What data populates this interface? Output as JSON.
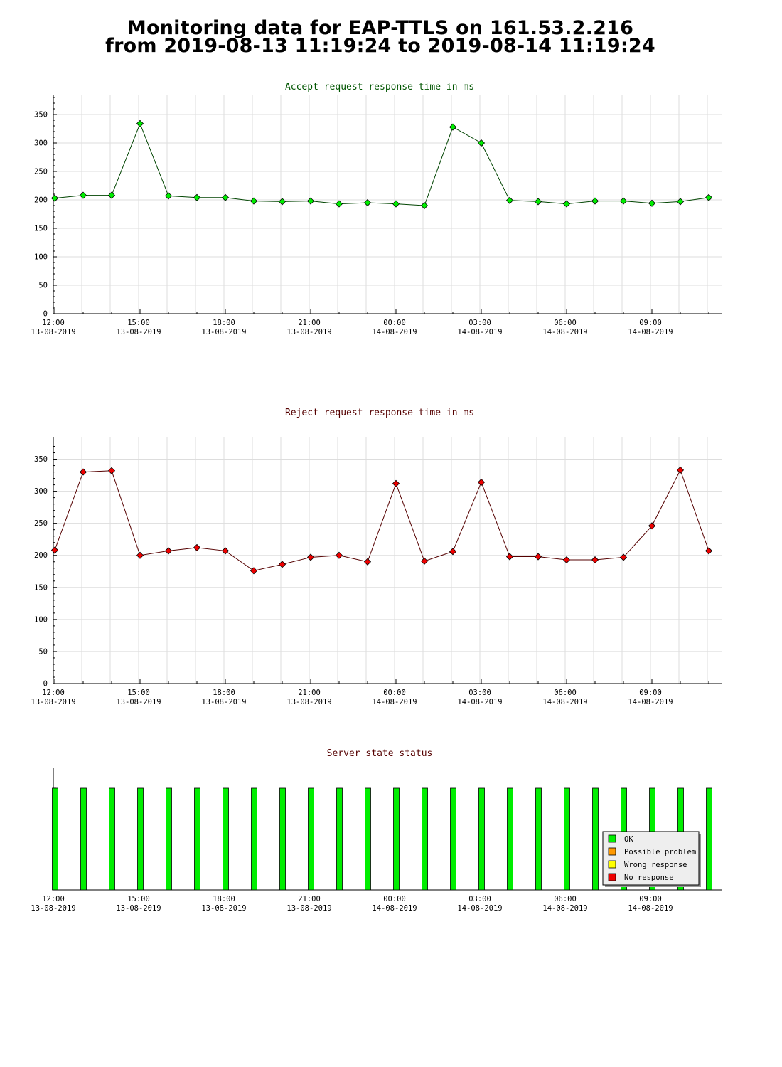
{
  "header": {
    "line1": "Monitoring data for EAP-TTLS on 161.53.2.216",
    "line2": "from 2019-08-13 11:19:24 to 2019-08-14 11:19:24"
  },
  "colors": {
    "accept_line": "#004400",
    "accept_marker": "#00ee00",
    "accept_title": "#005500",
    "reject_line": "#550000",
    "reject_marker": "#ee0000",
    "reject_title": "#550000",
    "status_bar": "#00ee00",
    "grid": "#dddddd"
  },
  "x_ticks": [
    {
      "time": "12:00",
      "date": "13-08-2019"
    },
    {
      "time": "15:00",
      "date": "13-08-2019"
    },
    {
      "time": "18:00",
      "date": "13-08-2019"
    },
    {
      "time": "21:00",
      "date": "13-08-2019"
    },
    {
      "time": "00:00",
      "date": "14-08-2019"
    },
    {
      "time": "03:00",
      "date": "14-08-2019"
    },
    {
      "time": "06:00",
      "date": "14-08-2019"
    },
    {
      "time": "09:00",
      "date": "14-08-2019"
    }
  ],
  "chart_data": [
    {
      "type": "line",
      "title": "Accept request response time in ms",
      "xlabel": "",
      "ylabel": "",
      "ylim": [
        0,
        385
      ],
      "yticks": [
        0,
        50,
        100,
        150,
        200,
        250,
        300,
        350
      ],
      "grid": true,
      "x": [
        "2019-08-13 12:00",
        "2019-08-13 13:00",
        "2019-08-13 14:00",
        "2019-08-13 15:00",
        "2019-08-13 16:00",
        "2019-08-13 17:00",
        "2019-08-13 18:00",
        "2019-08-13 19:00",
        "2019-08-13 20:00",
        "2019-08-13 21:00",
        "2019-08-13 22:00",
        "2019-08-13 23:00",
        "2019-08-14 00:00",
        "2019-08-14 01:00",
        "2019-08-14 02:00",
        "2019-08-14 03:00",
        "2019-08-14 04:00",
        "2019-08-14 05:00",
        "2019-08-14 06:00",
        "2019-08-14 07:00",
        "2019-08-14 08:00",
        "2019-08-14 09:00",
        "2019-08-14 10:00",
        "2019-08-14 11:00"
      ],
      "values": [
        203,
        208,
        208,
        334,
        207,
        204,
        204,
        198,
        197,
        198,
        193,
        195,
        193,
        190,
        328,
        300,
        199,
        197,
        193,
        198,
        198,
        194,
        197,
        204
      ]
    },
    {
      "type": "line",
      "title": "Reject request response time in ms",
      "xlabel": "",
      "ylabel": "",
      "ylim": [
        0,
        385
      ],
      "yticks": [
        0,
        50,
        100,
        150,
        200,
        250,
        300,
        350
      ],
      "grid": true,
      "x": [
        "2019-08-13 12:00",
        "2019-08-13 13:00",
        "2019-08-13 14:00",
        "2019-08-13 15:00",
        "2019-08-13 16:00",
        "2019-08-13 17:00",
        "2019-08-13 18:00",
        "2019-08-13 19:00",
        "2019-08-13 20:00",
        "2019-08-13 21:00",
        "2019-08-13 22:00",
        "2019-08-13 23:00",
        "2019-08-14 00:00",
        "2019-08-14 01:00",
        "2019-08-14 02:00",
        "2019-08-14 03:00",
        "2019-08-14 04:00",
        "2019-08-14 05:00",
        "2019-08-14 06:00",
        "2019-08-14 07:00",
        "2019-08-14 08:00",
        "2019-08-14 09:00",
        "2019-08-14 10:00",
        "2019-08-14 11:00"
      ],
      "values": [
        208,
        330,
        332,
        200,
        207,
        212,
        207,
        176,
        186,
        197,
        200,
        190,
        312,
        191,
        206,
        314,
        198,
        198,
        193,
        193,
        197,
        246,
        333,
        207
      ]
    },
    {
      "type": "bar",
      "title": "Server state status",
      "grid": false,
      "legend_position": "bottom-right",
      "legend": [
        {
          "label": "OK",
          "color": "#00ee00"
        },
        {
          "label": "Possible problem",
          "color": "#ff9900"
        },
        {
          "label": "Wrong response",
          "color": "#ffff00"
        },
        {
          "label": "No response",
          "color": "#ee0000"
        }
      ],
      "x": [
        "2019-08-13 12:00",
        "2019-08-13 13:00",
        "2019-08-13 14:00",
        "2019-08-13 15:00",
        "2019-08-13 16:00",
        "2019-08-13 17:00",
        "2019-08-13 18:00",
        "2019-08-13 19:00",
        "2019-08-13 20:00",
        "2019-08-13 21:00",
        "2019-08-13 22:00",
        "2019-08-13 23:00",
        "2019-08-14 00:00",
        "2019-08-14 01:00",
        "2019-08-14 02:00",
        "2019-08-14 03:00",
        "2019-08-14 04:00",
        "2019-08-14 05:00",
        "2019-08-14 06:00",
        "2019-08-14 07:00",
        "2019-08-14 08:00",
        "2019-08-14 09:00",
        "2019-08-14 10:00",
        "2019-08-14 11:00"
      ],
      "values": [
        "OK",
        "OK",
        "OK",
        "OK",
        "OK",
        "OK",
        "OK",
        "OK",
        "OK",
        "OK",
        "OK",
        "OK",
        "OK",
        "OK",
        "OK",
        "OK",
        "OK",
        "OK",
        "OK",
        "OK",
        "OK",
        "OK",
        "OK",
        "OK"
      ]
    }
  ]
}
